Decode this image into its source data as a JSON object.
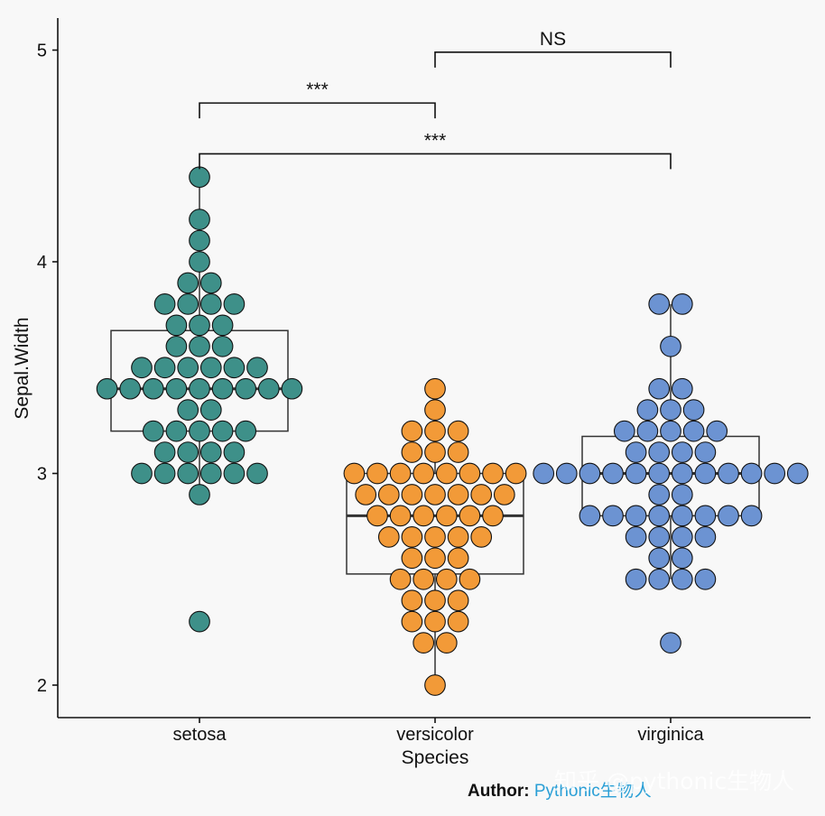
{
  "chart_data": {
    "type": "beeswarm-boxplot",
    "xlabel": "Species",
    "ylabel": "Sepal.Width",
    "ylim": [
      1.85,
      5.15
    ],
    "yticks": [
      2,
      3,
      4,
      5
    ],
    "categories": [
      "setosa",
      "versicolor",
      "virginica"
    ],
    "series": [
      {
        "category": "setosa",
        "color": "#3e9089",
        "box": {
          "q1": 3.2,
          "median": 3.4,
          "q3": 3.675,
          "whisker_low": 2.9,
          "whisker_high": 4.4
        },
        "values": [
          3.5,
          3.0,
          3.2,
          3.1,
          3.6,
          3.9,
          3.4,
          3.4,
          2.9,
          3.1,
          3.7,
          3.4,
          3.0,
          3.0,
          4.0,
          4.4,
          3.9,
          3.5,
          3.8,
          3.8,
          3.4,
          3.7,
          3.6,
          3.3,
          3.4,
          3.0,
          3.4,
          3.5,
          3.4,
          3.2,
          3.1,
          3.4,
          4.1,
          4.2,
          3.1,
          3.2,
          3.5,
          3.6,
          3.0,
          3.4,
          3.5,
          2.3,
          3.2,
          3.5,
          3.8,
          3.0,
          3.8,
          3.2,
          3.7,
          3.3
        ]
      },
      {
        "category": "versicolor",
        "color": "#f29a38",
        "box": {
          "q1": 2.525,
          "median": 2.8,
          "q3": 3.0,
          "whisker_low": 2.0,
          "whisker_high": 3.4
        },
        "values": [
          3.2,
          3.2,
          3.1,
          2.3,
          2.8,
          2.8,
          3.3,
          2.4,
          2.9,
          2.7,
          2.0,
          3.0,
          2.2,
          2.9,
          2.9,
          3.1,
          3.0,
          2.7,
          2.2,
          2.5,
          3.2,
          2.8,
          2.5,
          2.8,
          2.9,
          3.0,
          2.8,
          3.0,
          2.9,
          2.6,
          2.4,
          2.4,
          2.7,
          2.7,
          3.0,
          3.4,
          3.1,
          2.3,
          3.0,
          2.5,
          2.6,
          3.0,
          2.6,
          2.3,
          2.7,
          3.0,
          2.9,
          2.9,
          2.5,
          2.8
        ]
      },
      {
        "category": "virginica",
        "color": "#6c93d2",
        "box": {
          "q1": 2.8,
          "median": 3.0,
          "q3": 3.175,
          "whisker_low": 2.5,
          "whisker_high": 3.8
        },
        "values": [
          3.3,
          2.7,
          3.0,
          2.9,
          3.0,
          3.0,
          2.5,
          2.9,
          2.5,
          3.6,
          3.2,
          2.7,
          3.0,
          2.5,
          2.8,
          3.2,
          3.0,
          3.8,
          2.6,
          2.2,
          3.2,
          2.8,
          2.8,
          2.7,
          3.3,
          3.2,
          2.8,
          3.0,
          2.8,
          3.0,
          2.8,
          3.8,
          2.8,
          2.8,
          2.6,
          3.0,
          3.4,
          3.1,
          3.0,
          3.1,
          3.1,
          3.1,
          2.7,
          3.2,
          3.3,
          3.0,
          2.5,
          3.0,
          3.4,
          3.0
        ]
      }
    ],
    "comparisons": [
      {
        "from": "setosa",
        "to": "versicolor",
        "label": "***",
        "y": 4.75
      },
      {
        "from": "versicolor",
        "to": "virginica",
        "label": "NS",
        "y": 4.99
      },
      {
        "from": "setosa",
        "to": "virginica",
        "label": "***",
        "y": 4.51
      }
    ]
  },
  "caption": {
    "bold": "Author:",
    "name": "Pythonic生物人"
  },
  "watermark": "知乎 @pythonic生物人"
}
